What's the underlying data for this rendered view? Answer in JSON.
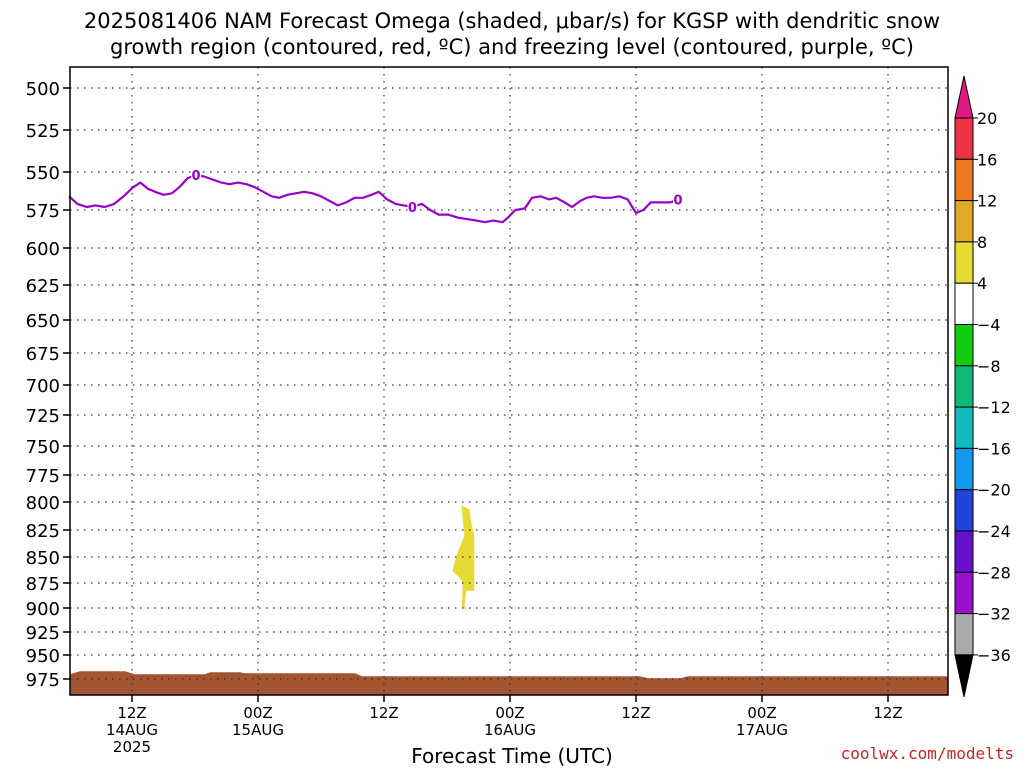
{
  "title": {
    "line1": "2025081406 NAM Forecast Omega (shaded, μbar/s) for KGSP with dendritic snow",
    "line2": "growth region (contoured, red, ºC) and freezing level (contoured, purple, ºC)"
  },
  "credit": "coolwx.com/modelts",
  "chart_data": {
    "type": "time-height contour",
    "xlabel": "Forecast Time (UTC)",
    "ylabel": "",
    "y_reversed": true,
    "ylim": [
      975,
      500
    ],
    "grid": true,
    "y_ticks": [
      500,
      525,
      550,
      575,
      600,
      625,
      650,
      675,
      700,
      725,
      750,
      775,
      800,
      825,
      850,
      875,
      900,
      925,
      950,
      975
    ],
    "x_ticks": [
      {
        "h": 0,
        "label": [
          "12Z",
          "14AUG",
          "2025"
        ]
      },
      {
        "h": 12,
        "label": [
          "00Z",
          "15AUG"
        ]
      },
      {
        "h": 24,
        "label": [
          "12Z"
        ]
      },
      {
        "h": 36,
        "label": [
          "00Z",
          "16AUG"
        ]
      },
      {
        "h": 48,
        "label": [
          "12Z"
        ]
      },
      {
        "h": 60,
        "label": [
          "00Z",
          "17AUG"
        ]
      },
      {
        "h": 72,
        "label": [
          "12Z"
        ]
      }
    ],
    "freezing_level": {
      "color": "#9900cc",
      "contour_label": "0",
      "label_at_hours": [
        5.7,
        3.8,
        27.1,
        0.3,
        52.4,
        0.5
      ],
      "points": [
        [
          -6.0,
          566
        ],
        [
          -5.2,
          571
        ],
        [
          -4.3,
          573
        ],
        [
          -3.5,
          572
        ],
        [
          -2.6,
          573
        ],
        [
          -1.7,
          571
        ],
        [
          -0.8,
          566
        ],
        [
          0.1,
          560
        ],
        [
          0.8,
          557
        ],
        [
          1.5,
          561
        ],
        [
          2.2,
          563
        ],
        [
          3.0,
          565
        ],
        [
          3.8,
          564
        ],
        [
          4.5,
          560
        ],
        [
          5.3,
          554
        ],
        [
          6.1,
          552
        ],
        [
          6.9,
          553
        ],
        [
          7.7,
          555
        ],
        [
          8.5,
          557
        ],
        [
          9.3,
          558
        ],
        [
          10.1,
          557
        ],
        [
          10.9,
          558
        ],
        [
          11.7,
          560
        ],
        [
          12.5,
          563
        ],
        [
          13.3,
          566
        ],
        [
          14.0,
          567
        ],
        [
          14.8,
          565
        ],
        [
          15.6,
          564
        ],
        [
          16.4,
          563
        ],
        [
          17.2,
          564
        ],
        [
          18.0,
          566
        ],
        [
          18.8,
          569
        ],
        [
          19.6,
          572
        ],
        [
          20.4,
          570
        ],
        [
          21.2,
          567
        ],
        [
          22.0,
          567
        ],
        [
          22.8,
          565
        ],
        [
          23.5,
          563
        ],
        [
          24.3,
          568
        ],
        [
          25.1,
          571
        ],
        [
          25.9,
          572
        ],
        [
          26.7,
          573
        ],
        [
          27.6,
          571
        ],
        [
          28.4,
          575
        ],
        [
          29.2,
          578
        ],
        [
          30.1,
          578
        ],
        [
          31.0,
          580
        ],
        [
          31.9,
          581
        ],
        [
          32.8,
          582
        ],
        [
          33.6,
          583
        ],
        [
          34.4,
          582
        ],
        [
          35.3,
          583
        ],
        [
          35.8,
          580
        ],
        [
          36.5,
          575
        ],
        [
          37.4,
          574
        ],
        [
          38.1,
          567
        ],
        [
          38.9,
          566
        ],
        [
          39.7,
          568
        ],
        [
          40.4,
          567
        ],
        [
          41.2,
          570
        ],
        [
          41.9,
          573
        ],
        [
          42.7,
          569
        ],
        [
          43.3,
          567
        ],
        [
          44.0,
          566
        ],
        [
          44.8,
          567
        ],
        [
          45.6,
          567
        ],
        [
          46.4,
          566
        ],
        [
          47.2,
          568
        ],
        [
          48.0,
          577
        ],
        [
          48.7,
          575
        ],
        [
          49.4,
          570
        ],
        [
          50.2,
          570
        ],
        [
          51.3,
          570
        ],
        [
          52.0,
          568
        ]
      ]
    },
    "dendritic_snow_growth_region": {
      "color": "#dd2222",
      "present": false
    },
    "omega_features": [
      {
        "value_range": [
          4,
          8
        ],
        "color": "#e6da33",
        "hours": [
          30.9,
          32.6
        ],
        "pressure": [
          803,
          903
        ]
      },
      {
        "label": "below ground",
        "color": "#a35430",
        "pressure_top": 968
      }
    ],
    "colorbar": {
      "unit": "μbar/s",
      "labels": [
        "20",
        "16",
        "12",
        "8",
        "4",
        "-4",
        "-8",
        "-12",
        "-16",
        "-20",
        "-24",
        "-28",
        "-32",
        "-36"
      ],
      "label_values": [
        20,
        16,
        12,
        8,
        4,
        -4,
        -8,
        -12,
        -16,
        -20,
        -24,
        -28,
        -32,
        -36
      ],
      "bins": [
        {
          "range": [
            16,
            20
          ],
          "color": "#ee3344"
        },
        {
          "range": [
            12,
            16
          ],
          "color": "#ee7722"
        },
        {
          "range": [
            8,
            12
          ],
          "color": "#e0aa22"
        },
        {
          "range": [
            4,
            8
          ],
          "color": "#e6da33"
        },
        {
          "range": [
            -4,
            4
          ],
          "color": "#ffffff"
        },
        {
          "range": [
            -8,
            -4
          ],
          "color": "#11cc11"
        },
        {
          "range": [
            -12,
            -8
          ],
          "color": "#11bb77"
        },
        {
          "range": [
            -16,
            -12
          ],
          "color": "#11bbbb"
        },
        {
          "range": [
            -20,
            -16
          ],
          "color": "#1199ee"
        },
        {
          "range": [
            -24,
            -20
          ],
          "color": "#2244dd"
        },
        {
          "range": [
            -28,
            -24
          ],
          "color": "#6611cc"
        },
        {
          "range": [
            -32,
            -28
          ],
          "color": "#9911cc"
        },
        {
          "range": [
            -36,
            -32
          ],
          "color": "#aaaaaa"
        }
      ],
      "above_max_color": "#e01880",
      "below_min_color": "#000000"
    }
  }
}
